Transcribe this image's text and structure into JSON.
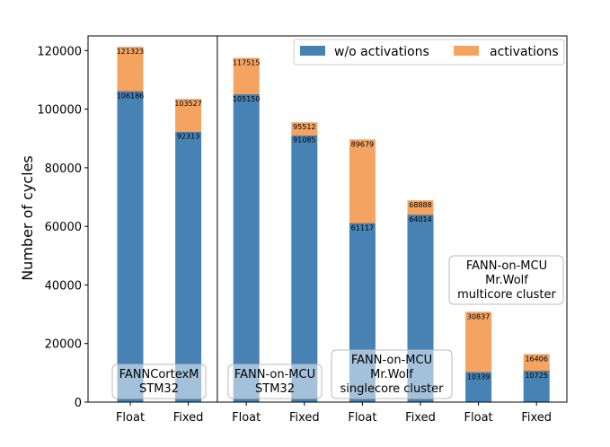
{
  "chart_data": {
    "type": "bar",
    "stacked": true,
    "ylabel": "Number of cycles",
    "xlabel": "",
    "ylim": [
      0,
      125000
    ],
    "yticks": [
      0,
      20000,
      40000,
      60000,
      80000,
      100000,
      120000
    ],
    "ytick_labels": [
      "0",
      "20000",
      "40000",
      "60000",
      "80000",
      "100000",
      "120000"
    ],
    "categories": [
      "Float",
      "Fixed",
      "Float",
      "Fixed",
      "Float",
      "Fixed",
      "Float",
      "Fixed"
    ],
    "series": [
      {
        "name": "w/o activations",
        "color": "#4682b4",
        "values": [
          106186,
          92313,
          105150,
          91085,
          61117,
          64014,
          10339,
          10725
        ]
      },
      {
        "name": "activations",
        "color": "#f4a460",
        "values": [
          15137,
          11214,
          12365,
          4427,
          28562,
          4874,
          20498,
          5681
        ]
      }
    ],
    "bar_labels_base": [
      "106186",
      "92313",
      "105150",
      "91085",
      "61117",
      "64014",
      "10339",
      "10725"
    ],
    "bar_labels_total": [
      "121323",
      "103527",
      "117515",
      "95512",
      "89679",
      "68888",
      "30837",
      "16406"
    ],
    "legend": {
      "position": "top-right",
      "entries": [
        "w/o activations",
        "activations"
      ]
    },
    "groups": [
      {
        "lines": [
          "FANNCortexM",
          "STM32"
        ]
      },
      {
        "lines": [
          "FANN-on-MCU",
          "STM32"
        ]
      },
      {
        "lines": [
          "FANN-on-MCU",
          "Mr.Wolf",
          "singlecore cluster"
        ]
      },
      {
        "lines": [
          "FANN-on-MCU",
          "Mr.Wolf",
          "multicore cluster"
        ]
      }
    ],
    "separator_after_index": 1,
    "grid": false
  }
}
